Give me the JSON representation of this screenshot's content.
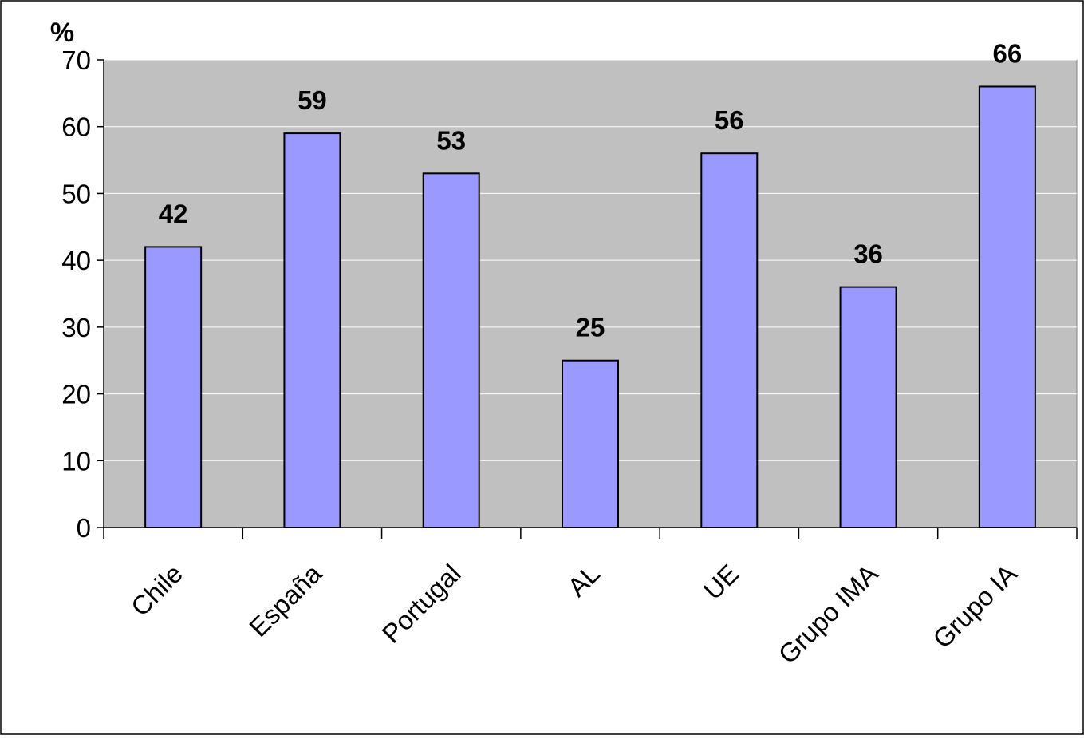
{
  "chart_data": {
    "type": "bar",
    "title": "",
    "xlabel": "",
    "ylabel": "%",
    "ylim": [
      0,
      70
    ],
    "yticks": [
      0,
      10,
      20,
      30,
      40,
      50,
      60,
      70
    ],
    "grid": true,
    "legend": "none",
    "categories": [
      "Chile",
      "España",
      "Portugal",
      "AL",
      "UE",
      "Grupo IMA",
      "Grupo IA"
    ],
    "values": [
      42,
      59,
      53,
      25,
      56,
      36,
      66
    ],
    "data_labels": [
      "42",
      "59",
      "53",
      "25",
      "56",
      "36",
      "66"
    ],
    "colors": {
      "bar": "#9999ff",
      "plot_background": "#c0c0c0",
      "gridline": "#ffffff",
      "axis": "#000000",
      "text": "#000000"
    }
  }
}
